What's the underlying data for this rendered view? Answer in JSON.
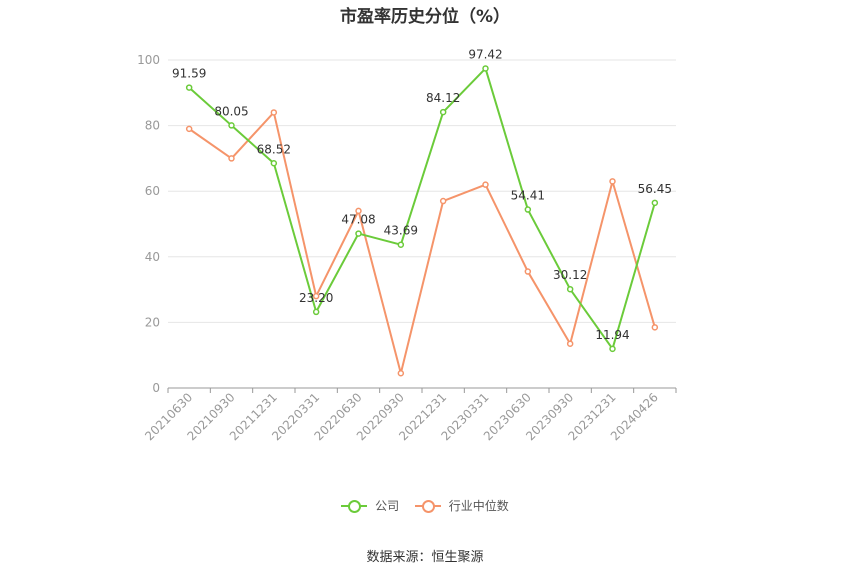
{
  "chart_data": {
    "type": "line",
    "title": "市盈率历史分位（%）",
    "categories": [
      "20210630",
      "20210930",
      "20211231",
      "20220331",
      "20220630",
      "20220930",
      "20221231",
      "20230331",
      "20230630",
      "20230930",
      "20231231",
      "20240426"
    ],
    "series": [
      {
        "name": "公司",
        "color": "#6bcb3a",
        "values": [
          91.59,
          80.05,
          68.52,
          23.2,
          47.08,
          43.69,
          84.12,
          97.42,
          54.41,
          30.12,
          11.94,
          56.45
        ],
        "labels": [
          "91.59",
          "80.05",
          "68.52",
          "23.20",
          "47.08",
          "43.69",
          "84.12",
          "97.42",
          "54.41",
          "30.12",
          "11.94",
          "56.45"
        ]
      },
      {
        "name": "行业中位数",
        "color": "#f5946a",
        "values": [
          79,
          70,
          84,
          28,
          54,
          4.5,
          57,
          62,
          35.5,
          13.5,
          63,
          18.5
        ]
      }
    ],
    "ylim": [
      0,
      100
    ],
    "yticks": [
      "0",
      "20",
      "40",
      "60",
      "80",
      "100"
    ],
    "grid": true,
    "legend_position": "bottom"
  },
  "source": "数据来源：恒生聚源"
}
